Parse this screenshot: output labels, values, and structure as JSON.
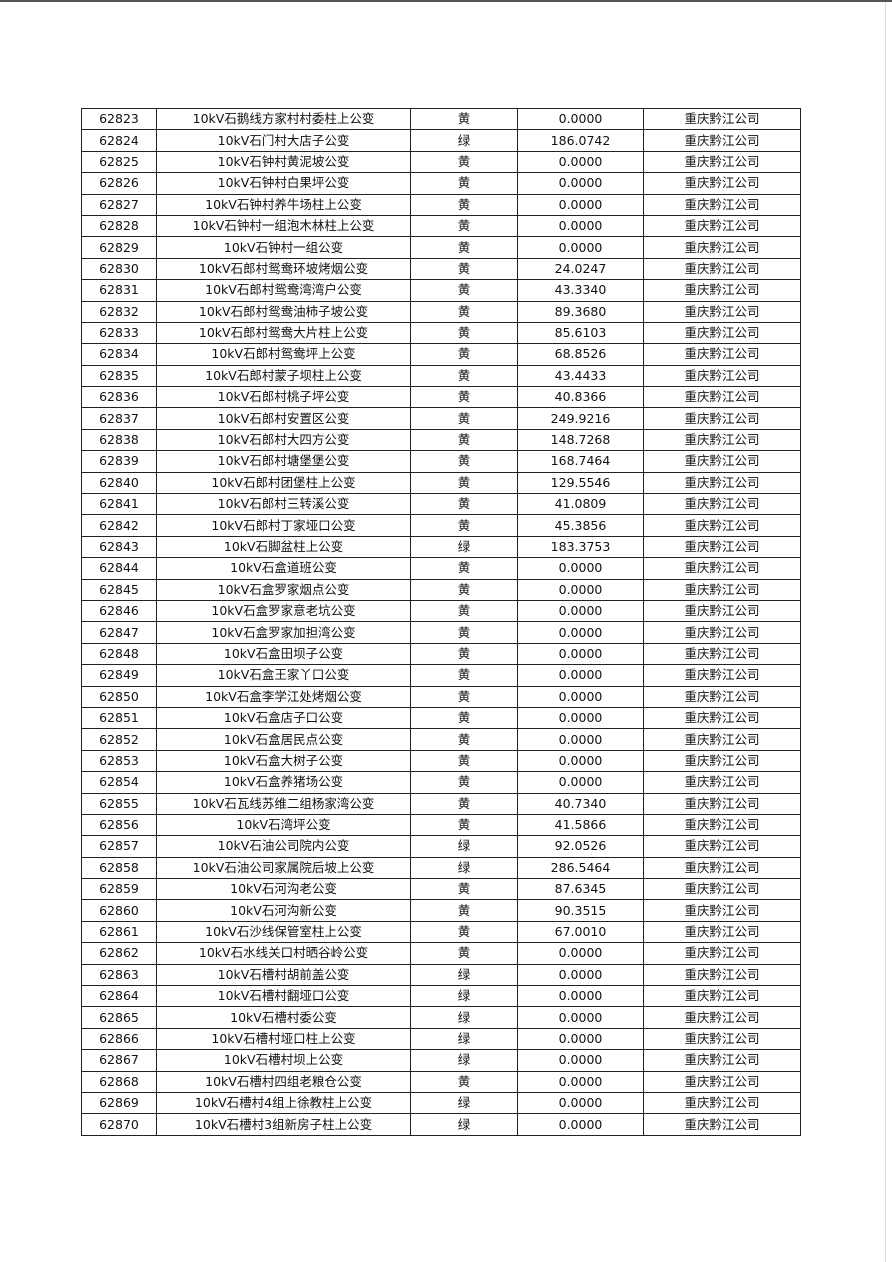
{
  "table": {
    "rows": [
      [
        "62823",
        "10kV石鹅线方家村村委柱上公变",
        "黄",
        "0.0000",
        "重庆黔江公司"
      ],
      [
        "62824",
        "10kV石门村大店子公变",
        "绿",
        "186.0742",
        "重庆黔江公司"
      ],
      [
        "62825",
        "10kV石钟村黄泥坡公变",
        "黄",
        "0.0000",
        "重庆黔江公司"
      ],
      [
        "62826",
        "10kV石钟村白果坪公变",
        "黄",
        "0.0000",
        "重庆黔江公司"
      ],
      [
        "62827",
        "10kV石钟村养牛场柱上公变",
        "黄",
        "0.0000",
        "重庆黔江公司"
      ],
      [
        "62828",
        "10kV石钟村一组泡木林柱上公变",
        "黄",
        "0.0000",
        "重庆黔江公司"
      ],
      [
        "62829",
        "10kV石钟村一组公变",
        "黄",
        "0.0000",
        "重庆黔江公司"
      ],
      [
        "62830",
        "10kV石郎村鸳鸯环坡烤烟公变",
        "黄",
        "24.0247",
        "重庆黔江公司"
      ],
      [
        "62831",
        "10kV石郎村鸳鸯湾湾户公变",
        "黄",
        "43.3340",
        "重庆黔江公司"
      ],
      [
        "62832",
        "10kV石郎村鸳鸯油柿子坡公变",
        "黄",
        "89.3680",
        "重庆黔江公司"
      ],
      [
        "62833",
        "10kV石郎村鸳鸯大片柱上公变",
        "黄",
        "85.6103",
        "重庆黔江公司"
      ],
      [
        "62834",
        "10kV石郎村鸳鸯坪上公变",
        "黄",
        "68.8526",
        "重庆黔江公司"
      ],
      [
        "62835",
        "10kV石郎村蒙子坝柱上公变",
        "黄",
        "43.4433",
        "重庆黔江公司"
      ],
      [
        "62836",
        "10kV石郎村桃子坪公变",
        "黄",
        "40.8366",
        "重庆黔江公司"
      ],
      [
        "62837",
        "10kV石郎村安置区公变",
        "黄",
        "249.9216",
        "重庆黔江公司"
      ],
      [
        "62838",
        "10kV石郎村大四方公变",
        "黄",
        "148.7268",
        "重庆黔江公司"
      ],
      [
        "62839",
        "10kV石郎村塘堡堡公变",
        "黄",
        "168.7464",
        "重庆黔江公司"
      ],
      [
        "62840",
        "10kV石郎村团堡柱上公变",
        "黄",
        "129.5546",
        "重庆黔江公司"
      ],
      [
        "62841",
        "10kV石郎村三转溪公变",
        "黄",
        "41.0809",
        "重庆黔江公司"
      ],
      [
        "62842",
        "10kV石郎村丁家垭口公变",
        "黄",
        "45.3856",
        "重庆黔江公司"
      ],
      [
        "62843",
        "10kV石脚盆柱上公变",
        "绿",
        "183.3753",
        "重庆黔江公司"
      ],
      [
        "62844",
        "10kV石盒道班公变",
        "黄",
        "0.0000",
        "重庆黔江公司"
      ],
      [
        "62845",
        "10kV石盒罗家烟点公变",
        "黄",
        "0.0000",
        "重庆黔江公司"
      ],
      [
        "62846",
        "10kV石盒罗家意老坑公变",
        "黄",
        "0.0000",
        "重庆黔江公司"
      ],
      [
        "62847",
        "10kV石盒罗家加担湾公变",
        "黄",
        "0.0000",
        "重庆黔江公司"
      ],
      [
        "62848",
        "10kV石盒田坝子公变",
        "黄",
        "0.0000",
        "重庆黔江公司"
      ],
      [
        "62849",
        "10kV石盒王家丫口公变",
        "黄",
        "0.0000",
        "重庆黔江公司"
      ],
      [
        "62850",
        "10kV石盒李学江处烤烟公变",
        "黄",
        "0.0000",
        "重庆黔江公司"
      ],
      [
        "62851",
        "10kV石盒店子口公变",
        "黄",
        "0.0000",
        "重庆黔江公司"
      ],
      [
        "62852",
        "10kV石盒居民点公变",
        "黄",
        "0.0000",
        "重庆黔江公司"
      ],
      [
        "62853",
        "10kV石盒大树子公变",
        "黄",
        "0.0000",
        "重庆黔江公司"
      ],
      [
        "62854",
        "10kV石盒养猪场公变",
        "黄",
        "0.0000",
        "重庆黔江公司"
      ],
      [
        "62855",
        "10kV石瓦线苏维二组杨家湾公变",
        "黄",
        "40.7340",
        "重庆黔江公司"
      ],
      [
        "62856",
        "10kV石湾坪公变",
        "黄",
        "41.5866",
        "重庆黔江公司"
      ],
      [
        "62857",
        "10kV石油公司院内公变",
        "绿",
        "92.0526",
        "重庆黔江公司"
      ],
      [
        "62858",
        "10kV石油公司家属院后坡上公变",
        "绿",
        "286.5464",
        "重庆黔江公司"
      ],
      [
        "62859",
        "10kV石河沟老公变",
        "黄",
        "87.6345",
        "重庆黔江公司"
      ],
      [
        "62860",
        "10kV石河沟新公变",
        "黄",
        "90.3515",
        "重庆黔江公司"
      ],
      [
        "62861",
        "10kV石沙线保管室柱上公变",
        "黄",
        "67.0010",
        "重庆黔江公司"
      ],
      [
        "62862",
        "10kV石水线关口村晒谷岭公变",
        "黄",
        "0.0000",
        "重庆黔江公司"
      ],
      [
        "62863",
        "10kV石槽村胡前盖公变",
        "绿",
        "0.0000",
        "重庆黔江公司"
      ],
      [
        "62864",
        "10kV石槽村翻垭口公变",
        "绿",
        "0.0000",
        "重庆黔江公司"
      ],
      [
        "62865",
        "10kV石槽村委公变",
        "绿",
        "0.0000",
        "重庆黔江公司"
      ],
      [
        "62866",
        "10kV石槽村垭口柱上公变",
        "绿",
        "0.0000",
        "重庆黔江公司"
      ],
      [
        "62867",
        "10kV石槽村坝上公变",
        "绿",
        "0.0000",
        "重庆黔江公司"
      ],
      [
        "62868",
        "10kV石槽村四组老粮仓公变",
        "黄",
        "0.0000",
        "重庆黔江公司"
      ],
      [
        "62869",
        "10kV石槽村4组上徐教柱上公变",
        "绿",
        "0.0000",
        "重庆黔江公司"
      ],
      [
        "62870",
        "10kV石槽村3组新房子柱上公变",
        "绿",
        "0.0000",
        "重庆黔江公司"
      ]
    ]
  }
}
